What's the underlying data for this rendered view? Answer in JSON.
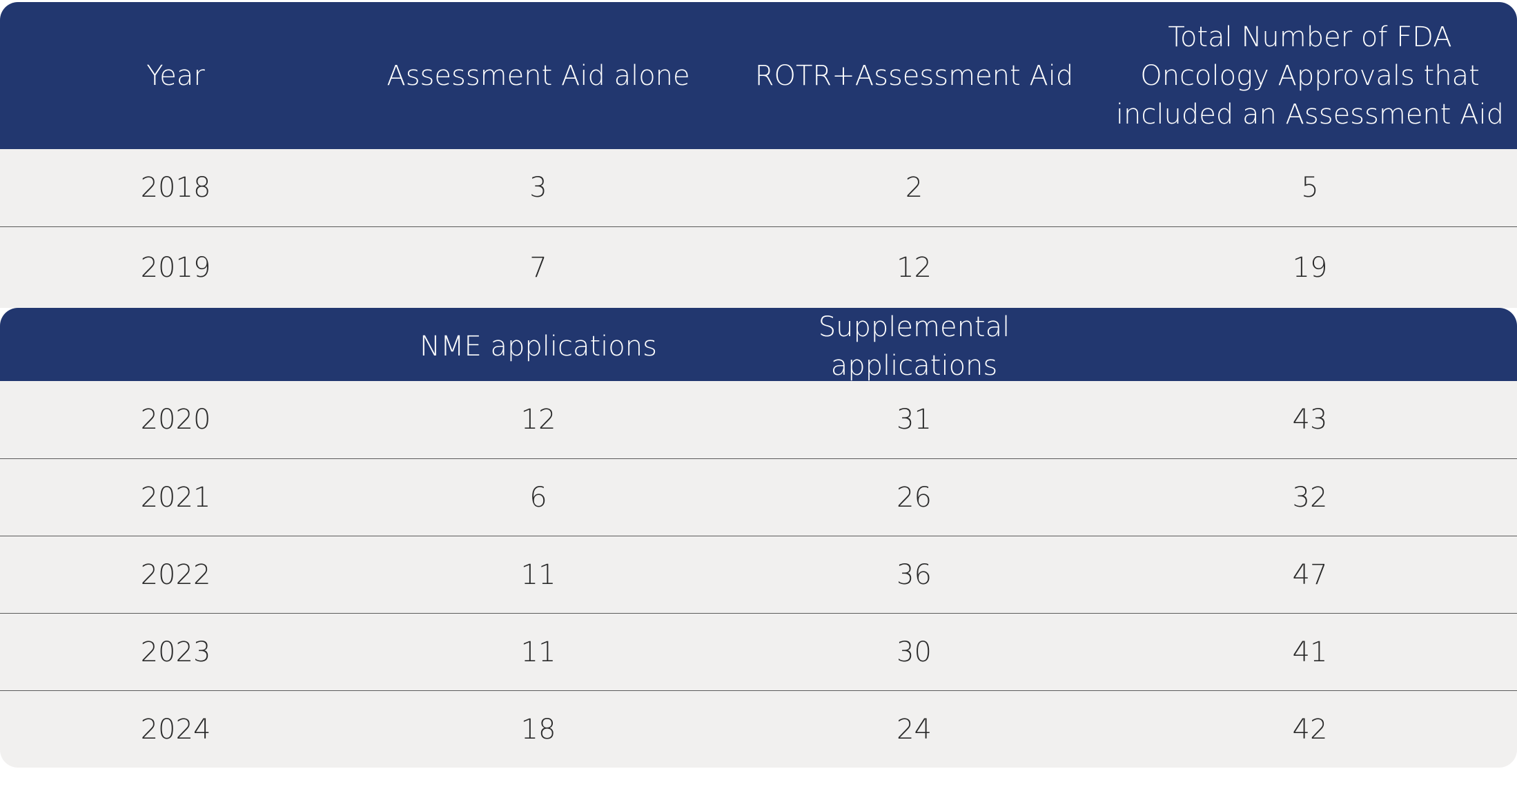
{
  "header": {
    "columns": [
      "Year",
      "Assessment Aid alone",
      "ROTR+Assessment Aid",
      "Total Number of FDA Oncology Approvals that included an Assessment Aid"
    ]
  },
  "rows_top": [
    [
      2018,
      3,
      2,
      5
    ],
    [
      2019,
      7,
      12,
      19
    ]
  ],
  "subheader": {
    "columns": [
      "NME applications",
      "Supplemental applications"
    ]
  },
  "rows_bottom": [
    [
      2020,
      12,
      31,
      43
    ],
    [
      2021,
      6,
      26,
      32
    ],
    [
      2022,
      11,
      36,
      47
    ],
    [
      2023,
      11,
      30,
      41
    ],
    [
      2024,
      18,
      24,
      42
    ]
  ]
}
